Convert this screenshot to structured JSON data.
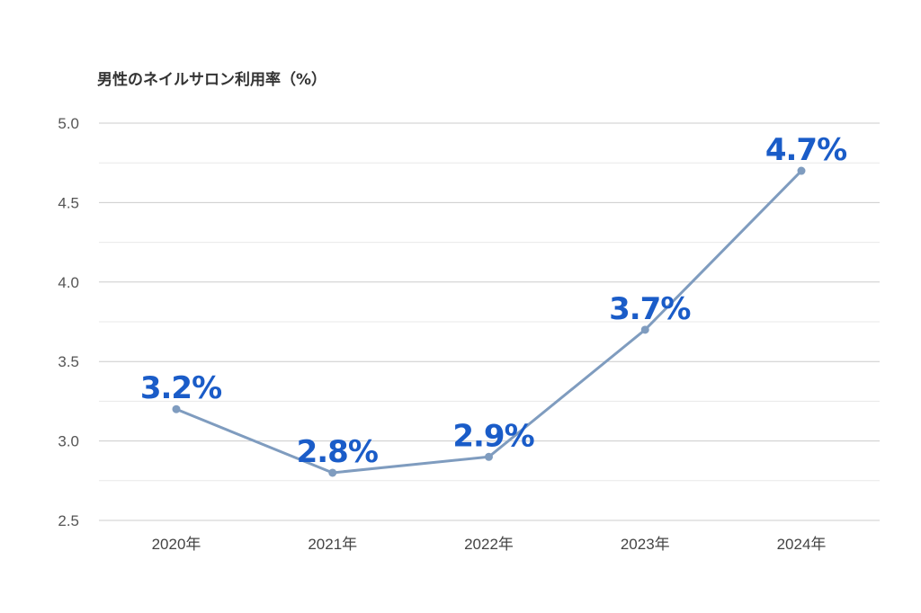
{
  "chart_data": {
    "type": "line",
    "title": "男性のネイルサロン利用率（%）",
    "xlabel": "",
    "ylabel": "",
    "categories": [
      "2020年",
      "2021年",
      "2022年",
      "2023年",
      "2024年"
    ],
    "series": [
      {
        "values": [
          3.2,
          2.8,
          2.9,
          3.7,
          4.7
        ],
        "data_labels": [
          "3.2%",
          "2.8%",
          "2.9%",
          "3.7%",
          "4.7%"
        ]
      }
    ],
    "ylim": [
      2.5,
      5.0
    ],
    "y_ticks": [
      "2.5",
      "3.0",
      "3.5",
      "4.0",
      "4.5",
      "5.0"
    ],
    "grid": true,
    "legend": "none",
    "colors": {
      "line": "#7f9cbf",
      "label": "#1a5cc8",
      "grid_major": "#cccccc",
      "grid_minor": "#e8e8e8"
    }
  }
}
